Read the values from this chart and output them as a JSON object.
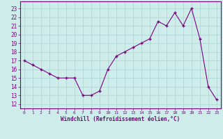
{
  "x": [
    0,
    1,
    2,
    3,
    4,
    5,
    6,
    7,
    8,
    9,
    10,
    11,
    12,
    13,
    14,
    15,
    16,
    17,
    18,
    19,
    20,
    21,
    22,
    23
  ],
  "y": [
    17,
    16.5,
    16,
    15.5,
    15,
    15,
    15,
    13,
    13,
    13.5,
    16,
    17.5,
    18,
    18.5,
    19,
    19.5,
    21.5,
    21,
    22.5,
    21,
    23,
    19.5,
    14,
    12.5
  ],
  "line_color": "#7b0080",
  "marker_color": "#7b0080",
  "bg_color": "#ceecea",
  "grid_color": "#b0d8d5",
  "xlabel": "Windchill (Refroidissement éolien,°C)",
  "ylabel_ticks": [
    12,
    13,
    14,
    15,
    16,
    17,
    18,
    19,
    20,
    21,
    22,
    23
  ],
  "xtick_labels": [
    "0",
    "1",
    "2",
    "3",
    "4",
    "5",
    "6",
    "7",
    "8",
    "9",
    "10",
    "11",
    "12",
    "13",
    "14",
    "15",
    "16",
    "17",
    "18",
    "19",
    "20",
    "21",
    "22",
    "23"
  ],
  "ylim": [
    11.5,
    23.8
  ],
  "xlim": [
    -0.5,
    23.5
  ],
  "tick_color": "#7b0080",
  "font_color": "#7b0080"
}
